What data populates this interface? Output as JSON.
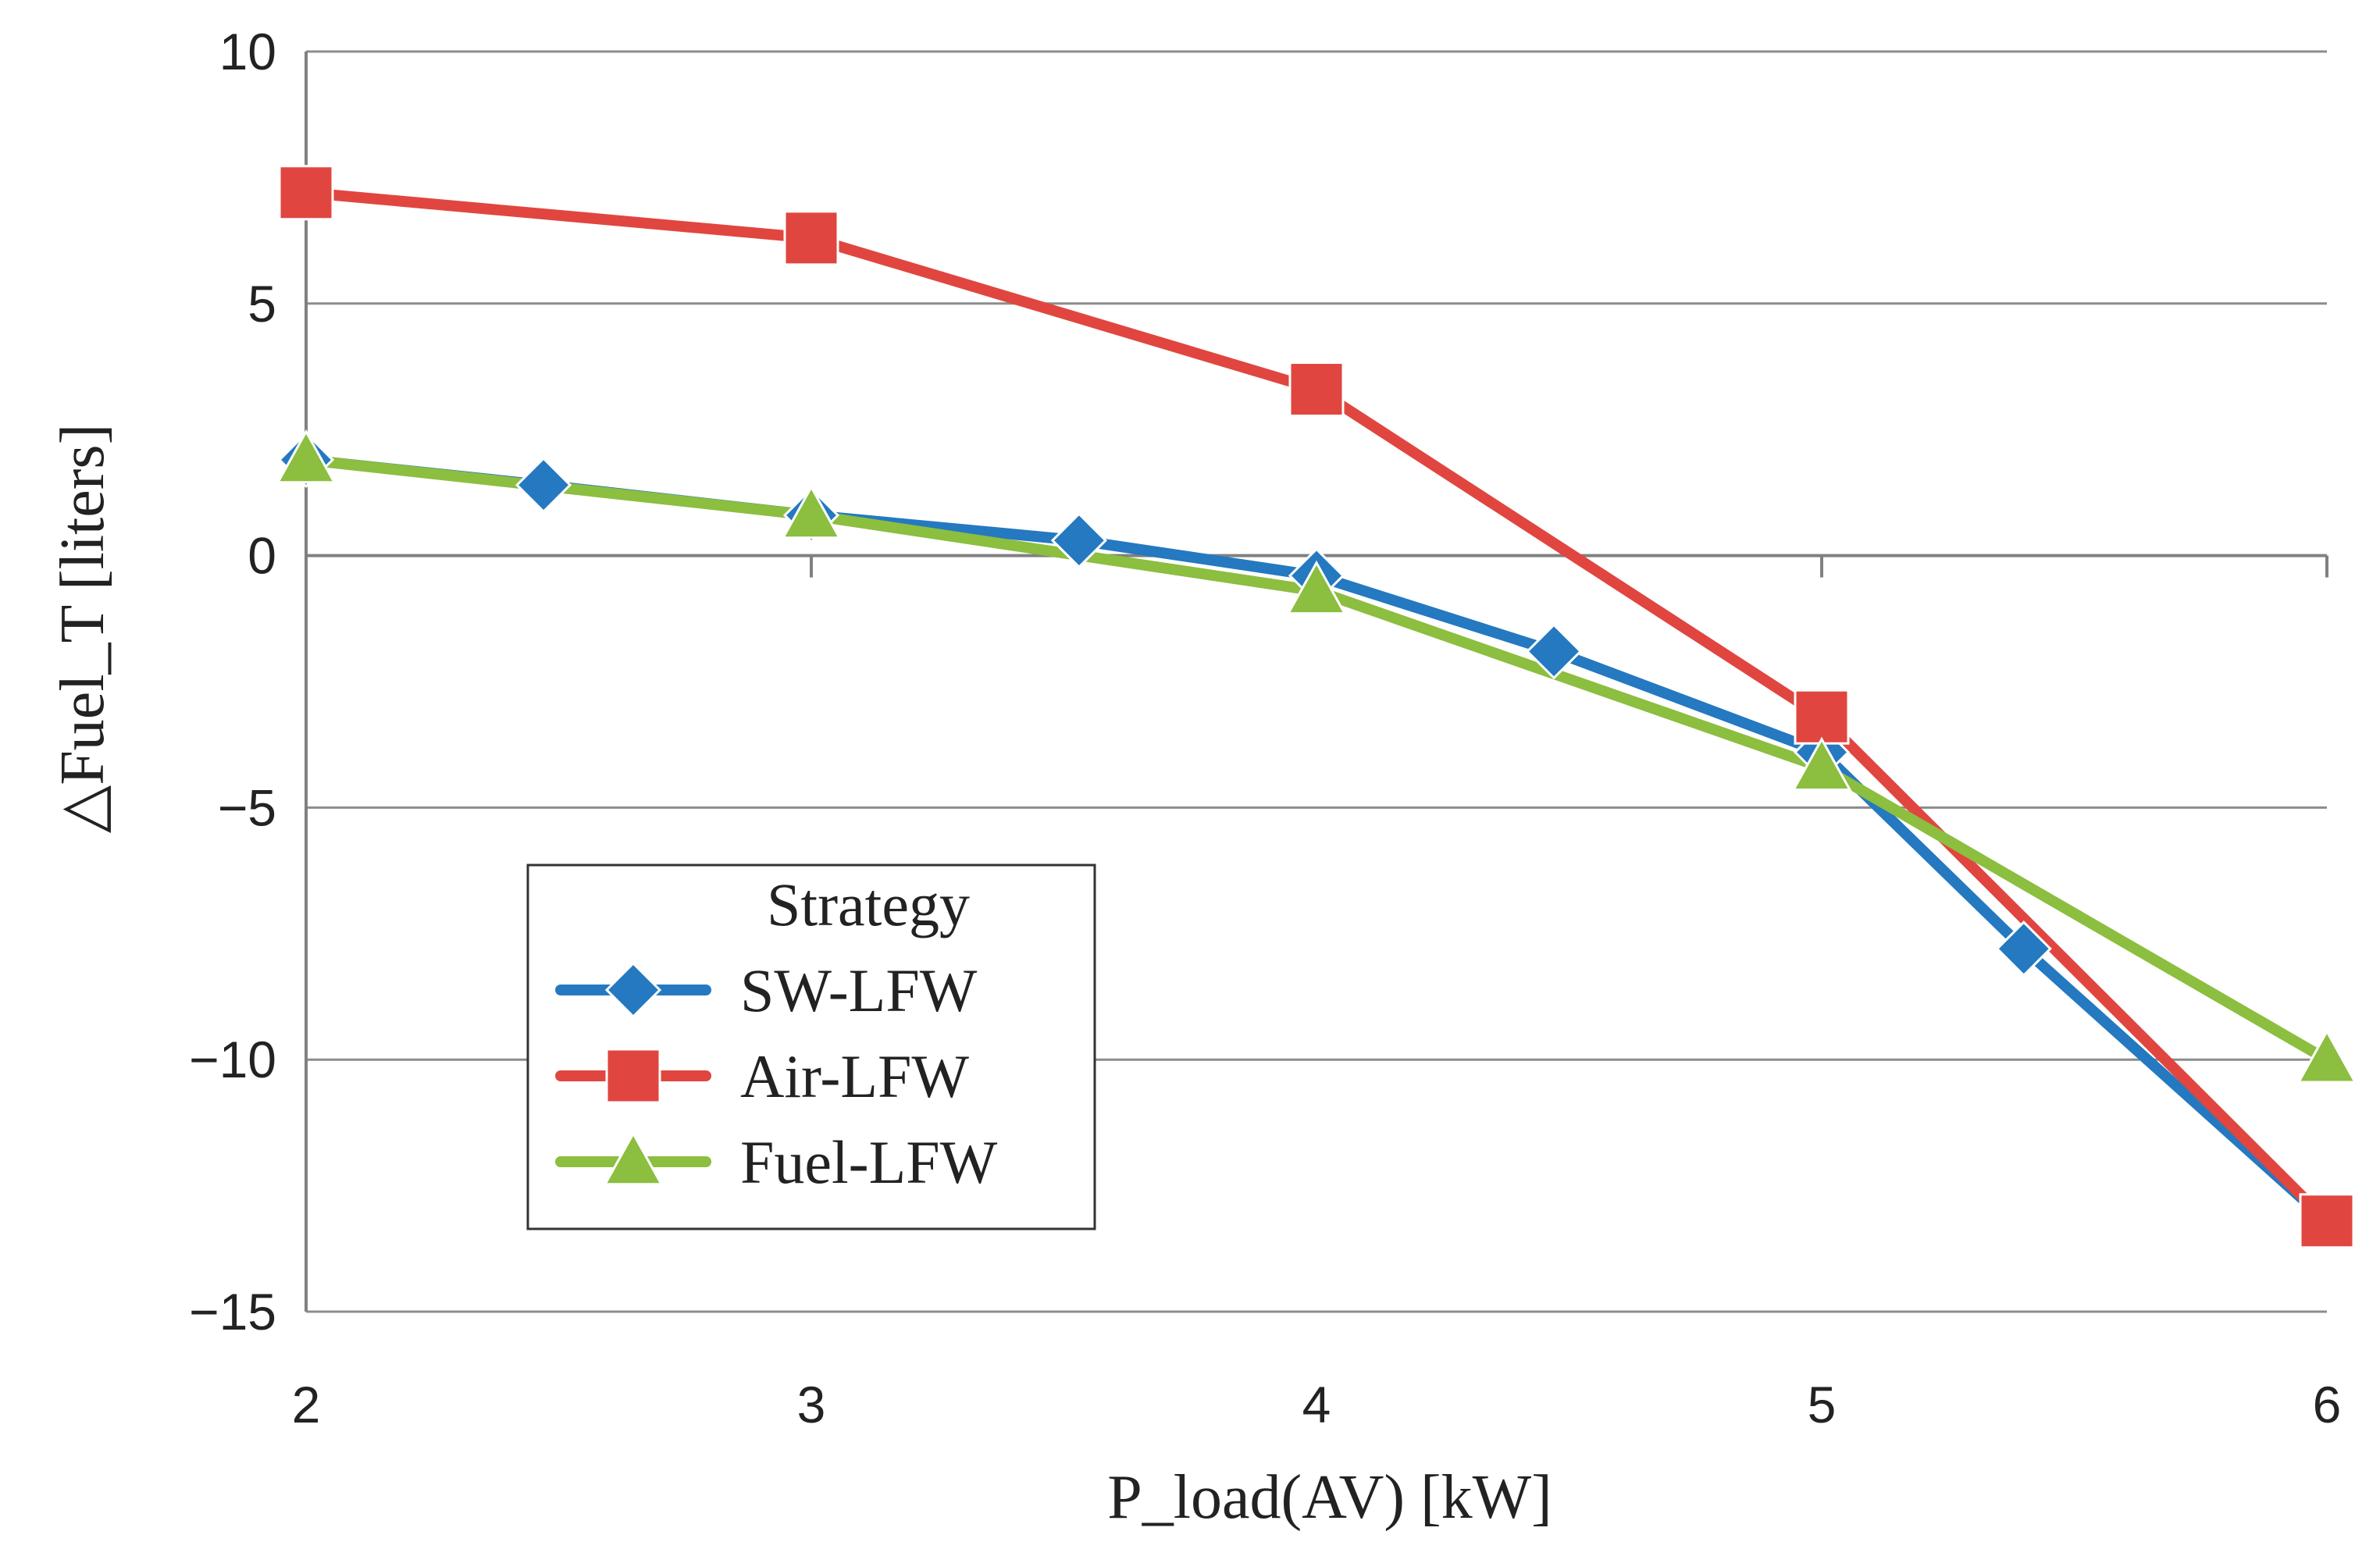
{
  "chart_data": {
    "type": "line",
    "xlabel": "P_load(AV) [kW]",
    "ylabel": "△Fuel_T [liters]",
    "xlim": [
      2,
      6
    ],
    "ylim": [
      -15,
      10
    ],
    "x_ticks": [
      "2",
      "3",
      "4",
      "5",
      "6"
    ],
    "y_ticks": [
      "10",
      "5",
      "0",
      "−5",
      "−10",
      "−15"
    ],
    "grid": "horizontal",
    "legend": {
      "title": "Strategy",
      "position": "bottom-left"
    },
    "series": [
      {
        "name": "SW-LFW",
        "color": "#2479c0",
        "marker": "diamond",
        "x": [
          2,
          2.47,
          3,
          3.53,
          4,
          4.47,
          5,
          5.4,
          6
        ],
        "y": [
          1.9,
          1.4,
          0.8,
          0.3,
          -0.4,
          -1.9,
          -3.9,
          -7.8,
          -13.2
        ]
      },
      {
        "name": "Air-LFW",
        "color": "#e0463f",
        "marker": "square",
        "x": [
          2,
          3,
          4,
          5,
          6
        ],
        "y": [
          7.2,
          6.3,
          3.3,
          -3.2,
          -13.2
        ]
      },
      {
        "name": "Fuel-LFW",
        "color": "#8cbe3f",
        "marker": "triangle",
        "x": [
          2,
          3,
          4,
          5,
          6
        ],
        "y": [
          1.9,
          0.8,
          -0.7,
          -4.2,
          -10.0
        ]
      }
    ]
  }
}
